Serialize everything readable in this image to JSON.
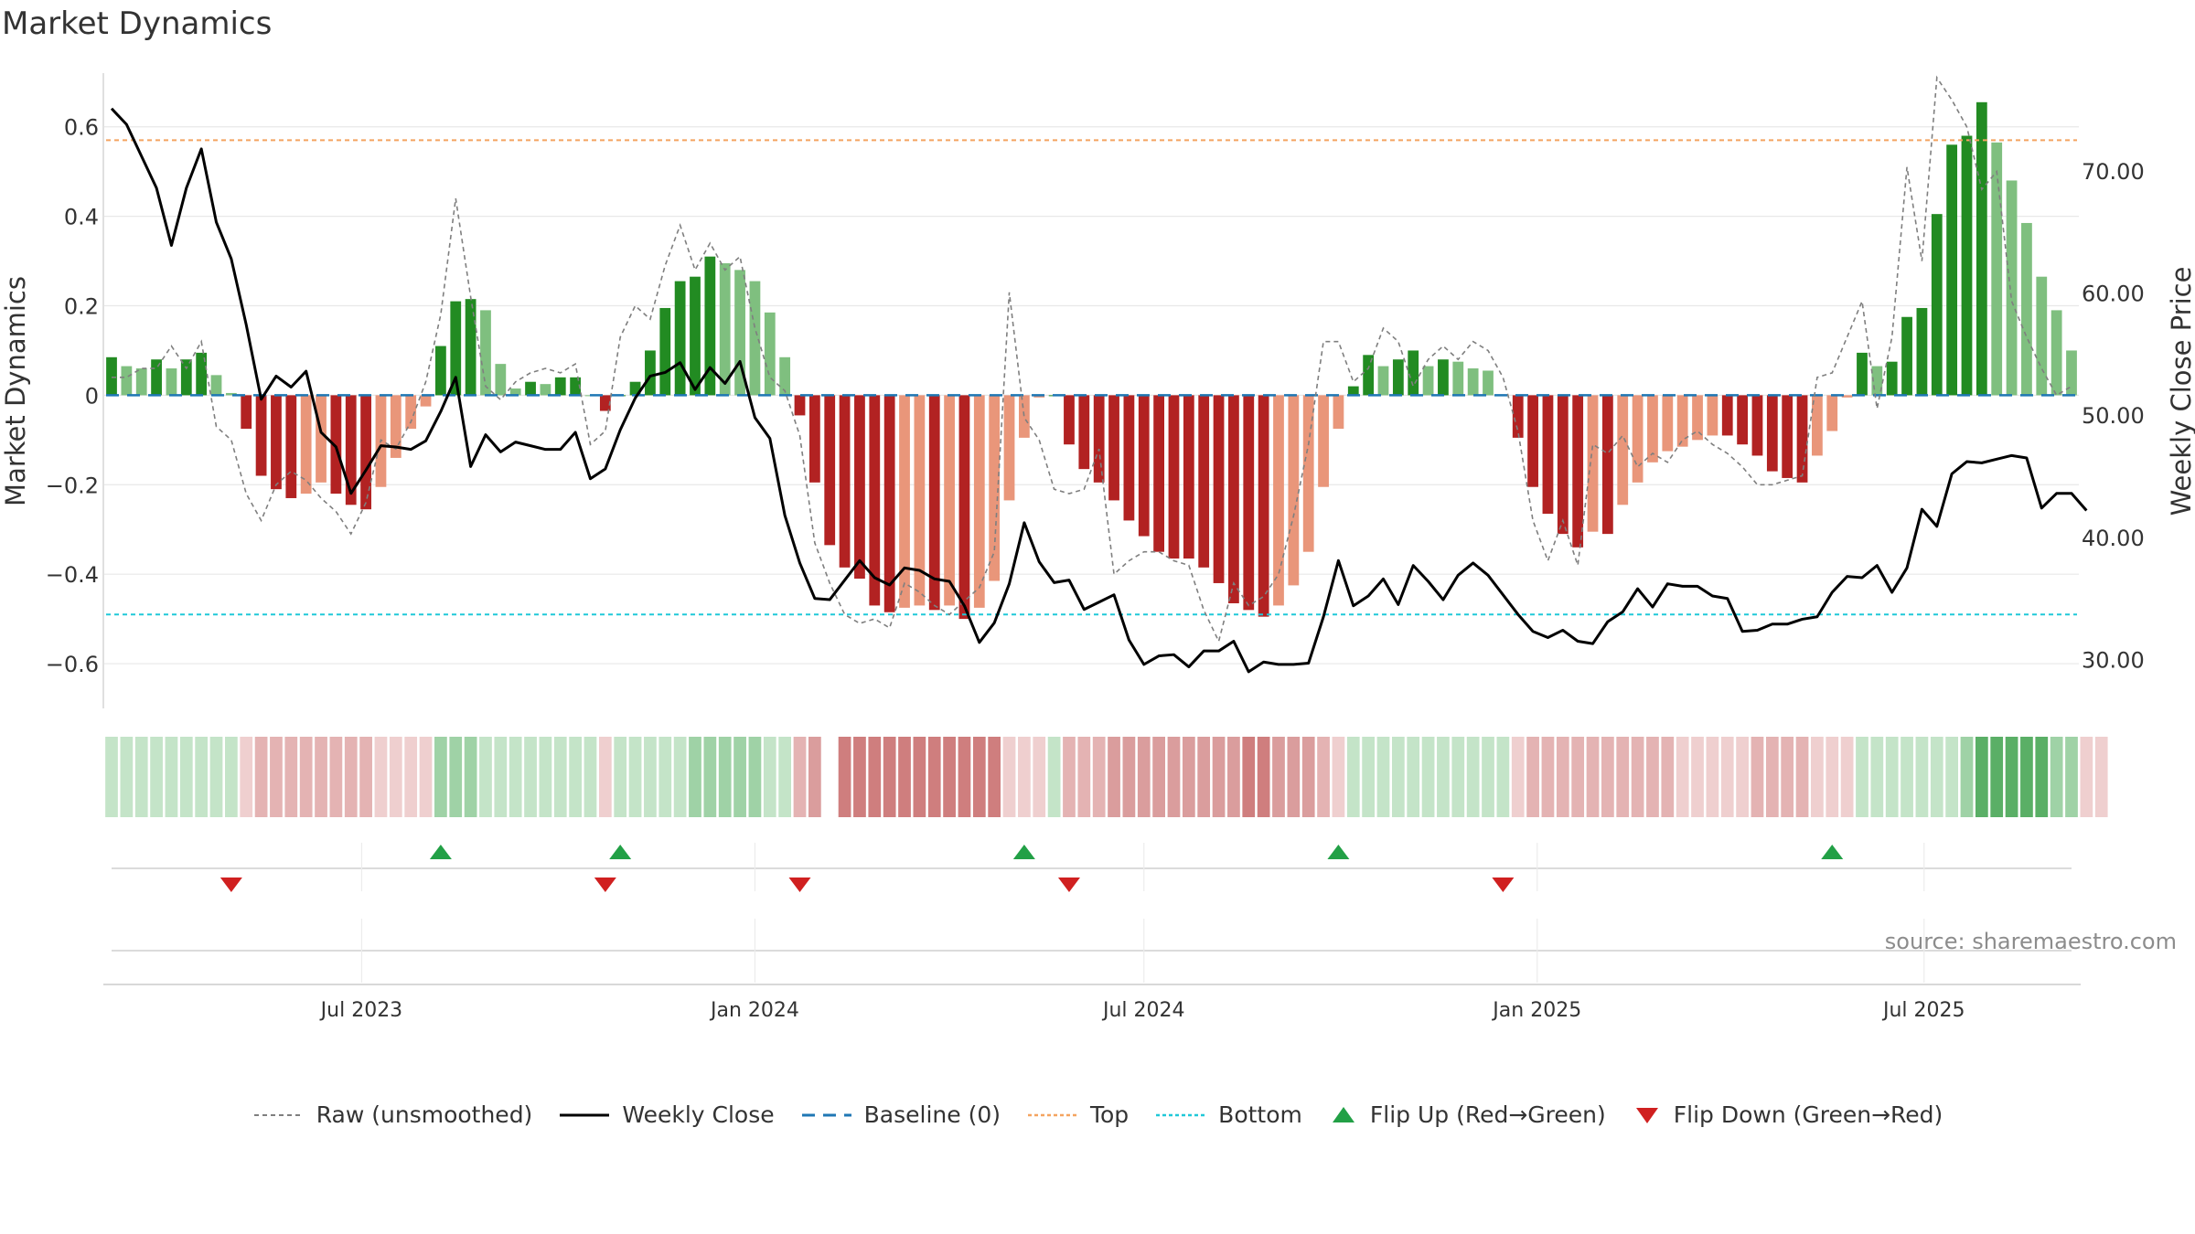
{
  "title": "Market Dynamics",
  "source": "source: sharemaestro.com",
  "colors": {
    "green_dark": "#228b22",
    "green_light": "#7fbf7f",
    "red_dark": "#b22222",
    "red_light": "#e9967a",
    "top": "#f4a460",
    "bottom": "#20c8d8",
    "baseline": "#1f77b4",
    "close": "#000000",
    "raw": "#7f7f7f",
    "flip_up": "#22a046",
    "flip_down": "#d02020"
  },
  "chart_data": {
    "type": "bar",
    "x_start": "2023-03-06",
    "x_step_days": 7,
    "ylabel_left": "Market Dynamics",
    "ylabel_right": "Weekly Close Price",
    "ylim_left": [
      -0.7,
      0.72
    ],
    "ylim_right": [
      26.0,
      78.0
    ],
    "left_ticks": [
      0.6,
      0.4,
      0.2,
      0,
      -0.2,
      -0.4,
      -0.6
    ],
    "left_tick_labels": [
      "0.6",
      "0.4",
      "0.2",
      "0",
      "−0.2",
      "−0.4",
      "−0.6"
    ],
    "right_ticks": [
      70,
      60,
      50,
      40,
      30
    ],
    "right_tick_labels": [
      "70.00",
      "60.00",
      "50.00",
      "40.00",
      "30.00"
    ],
    "x_ticks": [
      {
        "date": "2023-07-01",
        "label": "Jul 2023"
      },
      {
        "date": "2024-01-01",
        "label": "Jan 2024"
      },
      {
        "date": "2024-07-01",
        "label": "Jul 2024"
      },
      {
        "date": "2025-01-01",
        "label": "Jan 2025"
      },
      {
        "date": "2025-07-01",
        "label": "Jul 2025"
      }
    ],
    "top_line": 0.57,
    "bottom_line": -0.49,
    "baseline": 0,
    "series": [
      {
        "name": "Market Dynamics",
        "values": [
          0.085,
          0.065,
          0.06,
          0.08,
          0.06,
          0.08,
          0.095,
          0.045,
          0.005,
          -0.075,
          -0.18,
          -0.21,
          -0.23,
          -0.22,
          -0.195,
          -0.22,
          -0.245,
          -0.255,
          -0.205,
          -0.14,
          -0.075,
          -0.025,
          0.11,
          0.21,
          0.215,
          0.19,
          0.07,
          0.015,
          0.03,
          0.025,
          0.04,
          0.04,
          0.0,
          -0.035,
          0.0,
          0.03,
          0.1,
          0.195,
          0.255,
          0.265,
          0.31,
          0.295,
          0.28,
          0.255,
          0.185,
          0.085,
          -0.045,
          -0.195,
          -0.335,
          -0.385,
          -0.41,
          -0.47,
          -0.485,
          -0.475,
          -0.47,
          -0.48,
          -0.47,
          -0.5,
          -0.475,
          -0.415,
          -0.235,
          -0.095,
          -0.005,
          0.0,
          -0.11,
          -0.165,
          -0.195,
          -0.235,
          -0.28,
          -0.315,
          -0.35,
          -0.365,
          -0.365,
          -0.385,
          -0.42,
          -0.465,
          -0.48,
          -0.495,
          -0.47,
          -0.425,
          -0.35,
          -0.205,
          -0.075,
          0.02,
          0.09,
          0.065,
          0.08,
          0.1,
          0.065,
          0.08,
          0.075,
          0.06,
          0.055,
          0.0,
          -0.095,
          -0.205,
          -0.265,
          -0.31,
          -0.34,
          -0.305,
          -0.31,
          -0.245,
          -0.195,
          -0.15,
          -0.125,
          -0.115,
          -0.1,
          -0.09,
          -0.09,
          -0.11,
          -0.135,
          -0.17,
          -0.185,
          -0.195,
          -0.135,
          -0.08,
          -0.005,
          0.095,
          0.065,
          0.075,
          0.175,
          0.195,
          0.405,
          0.56,
          0.58,
          0.655,
          0.565,
          0.48,
          0.385,
          0.265,
          0.19,
          0.1
        ]
      },
      {
        "name": "Raw (unsmoothed)",
        "values": [
          0.04,
          0.04,
          0.06,
          0.06,
          0.11,
          0.06,
          0.12,
          -0.07,
          -0.1,
          -0.22,
          -0.28,
          -0.2,
          -0.17,
          -0.19,
          -0.23,
          -0.26,
          -0.31,
          -0.24,
          -0.1,
          -0.12,
          -0.06,
          0.03,
          0.18,
          0.44,
          0.22,
          0.02,
          -0.01,
          0.03,
          0.05,
          0.06,
          0.05,
          0.07,
          -0.11,
          -0.08,
          0.13,
          0.2,
          0.17,
          0.29,
          0.38,
          0.28,
          0.34,
          0.28,
          0.31,
          0.15,
          0.04,
          0.01,
          -0.09,
          -0.33,
          -0.42,
          -0.49,
          -0.51,
          -0.5,
          -0.52,
          -0.42,
          -0.44,
          -0.47,
          -0.49,
          -0.46,
          -0.43,
          -0.35,
          0.23,
          -0.05,
          -0.1,
          -0.21,
          -0.22,
          -0.21,
          -0.12,
          -0.4,
          -0.37,
          -0.35,
          -0.35,
          -0.37,
          -0.38,
          -0.48,
          -0.55,
          -0.42,
          -0.47,
          -0.45,
          -0.4,
          -0.27,
          -0.11,
          0.12,
          0.12,
          0.03,
          0.06,
          0.15,
          0.12,
          0.02,
          0.08,
          0.11,
          0.08,
          0.12,
          0.1,
          0.04,
          -0.08,
          -0.28,
          -0.37,
          -0.28,
          -0.38,
          -0.11,
          -0.13,
          -0.09,
          -0.16,
          -0.13,
          -0.15,
          -0.1,
          -0.08,
          -0.11,
          -0.13,
          -0.16,
          -0.2,
          -0.2,
          -0.19,
          -0.18,
          0.04,
          0.05,
          0.13,
          0.21,
          -0.03,
          0.13,
          0.51,
          0.3,
          0.71,
          0.66,
          0.6,
          0.46,
          0.5,
          0.21,
          0.13,
          0.06,
          0.0,
          0.02
        ]
      },
      {
        "name": "Weekly Close",
        "values": [
          75.1,
          73.8,
          71.2,
          68.6,
          63.9,
          68.6,
          71.8,
          65.8,
          62.8,
          57.4,
          51.3,
          53.2,
          52.3,
          53.6,
          48.6,
          47.4,
          43.6,
          45.5,
          47.5,
          47.4,
          47.2,
          47.9,
          50.3,
          53.1,
          45.8,
          48.4,
          47.0,
          47.8,
          47.5,
          47.2,
          47.2,
          48.6,
          44.8,
          45.6,
          48.8,
          51.4,
          53.2,
          53.5,
          54.3,
          52.1,
          53.9,
          52.6,
          54.4,
          49.8,
          48.1,
          41.8,
          37.9,
          35.0,
          34.9,
          36.5,
          38.1,
          36.7,
          36.1,
          37.5,
          37.3,
          36.6,
          36.4,
          34.4,
          31.4,
          33.0,
          36.2,
          41.2,
          38.0,
          36.3,
          36.5,
          34.1,
          34.7,
          35.3,
          31.6,
          29.6,
          30.3,
          30.4,
          29.4,
          30.7,
          30.7,
          31.5,
          29.0,
          29.8,
          29.6,
          29.6,
          29.7,
          33.5,
          38.1,
          34.4,
          35.2,
          36.6,
          34.5,
          37.7,
          36.4,
          34.9,
          36.9,
          37.9,
          36.9,
          35.3,
          33.7,
          32.3,
          31.8,
          32.4,
          31.5,
          31.3,
          33.1,
          33.9,
          35.8,
          34.3,
          36.2,
          36.0,
          36.0,
          35.2,
          35.0,
          32.3,
          32.4,
          32.9,
          32.9,
          33.3,
          33.5,
          35.5,
          36.8,
          36.7,
          37.7,
          35.5,
          37.5,
          42.3,
          40.9,
          45.2,
          46.2,
          46.1,
          46.4,
          46.7,
          46.5,
          42.4,
          43.6,
          43.6,
          42.2
        ]
      }
    ],
    "regime_levels": [
      1,
      1,
      1,
      1,
      1,
      1,
      1,
      1,
      1,
      1,
      2,
      2,
      2,
      2,
      2,
      2,
      2,
      2,
      1,
      1,
      1,
      1,
      3,
      3,
      3,
      2,
      2,
      1,
      1,
      1,
      1,
      1,
      1,
      1,
      1,
      1,
      2,
      2,
      2,
      3,
      3,
      3,
      3,
      3,
      2,
      2,
      2,
      3,
      null,
      4,
      4,
      4,
      4,
      4,
      4,
      4,
      4,
      4,
      4,
      4,
      1,
      1,
      1,
      1,
      2,
      2,
      2,
      3,
      3,
      3,
      3,
      3,
      3,
      3,
      3,
      3,
      4,
      4,
      3,
      3,
      3,
      2,
      1,
      1,
      1,
      1,
      1,
      1,
      1,
      1,
      1,
      1,
      1,
      1,
      1,
      2,
      2,
      2,
      2,
      2,
      2,
      2,
      2,
      2,
      2,
      1,
      1,
      1,
      1,
      1,
      2,
      2,
      2,
      2,
      1,
      1,
      1,
      2,
      2,
      2,
      2,
      2,
      2,
      2,
      4,
      5,
      5,
      5,
      5,
      5,
      4,
      4,
      1,
      1
    ],
    "flip_up_weeks": [
      22,
      34,
      61,
      82,
      115
    ],
    "flip_down_weeks": [
      8,
      33,
      46,
      64,
      93
    ],
    "legend": [
      {
        "label": "Raw (unsmoothed)",
        "icon": "dashed-gray-line"
      },
      {
        "label": "Weekly Close",
        "icon": "solid-black-line"
      },
      {
        "label": "Baseline (0)",
        "icon": "dashed-blue-line"
      },
      {
        "label": "Top",
        "icon": "dotted-orange-line"
      },
      {
        "label": "Bottom",
        "icon": "dotted-cyan-line"
      },
      {
        "label": "Flip Up (Red→Green)",
        "icon": "green-up-triangle"
      },
      {
        "label": "Flip Down (Green→Red)",
        "icon": "red-down-triangle"
      }
    ]
  }
}
